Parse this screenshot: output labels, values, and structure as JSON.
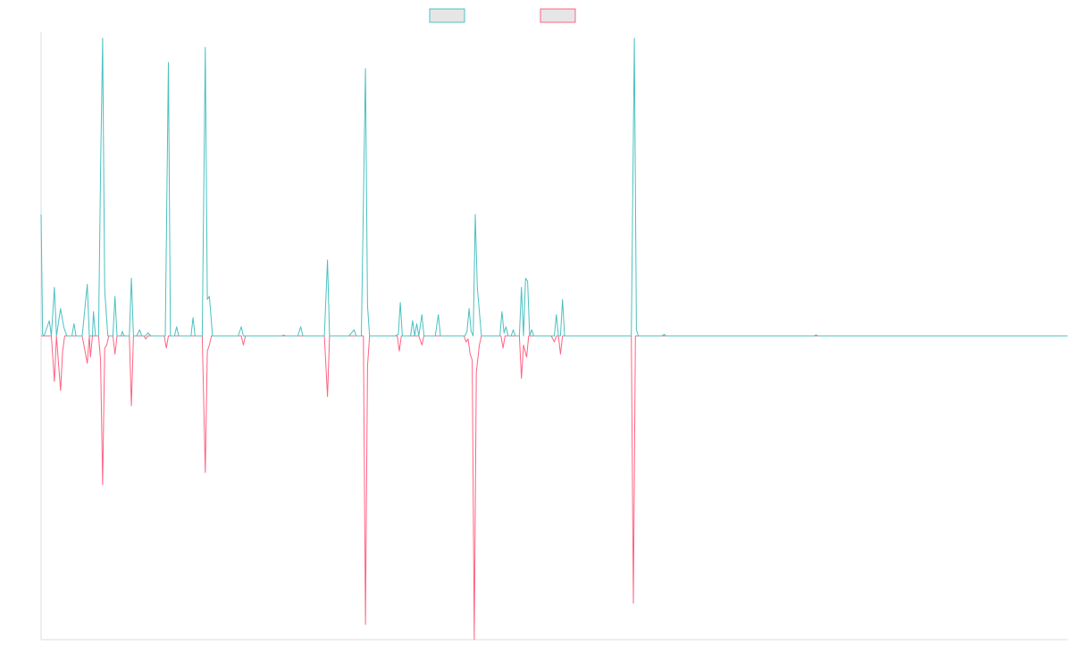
{
  "chart_data": {
    "type": "line",
    "legend": {
      "position": "top-center",
      "labels": [
        "",
        ""
      ]
    },
    "colors": {
      "series_a": "#4bc0c0",
      "series_b": "#ff6384",
      "legend_fill": "#e6e6e6",
      "axis": "#dddddd"
    },
    "grid": false,
    "axis_labels_shown": false,
    "x": [
      0,
      1000
    ],
    "ylim": [
      -100,
      100
    ],
    "series": [
      {
        "key": "series_a",
        "color": "#4bc0c0",
        "points": [
          [
            0,
            40
          ],
          [
            1.5,
            0.5
          ],
          [
            3,
            0
          ],
          [
            8,
            5
          ],
          [
            10,
            0
          ],
          [
            13,
            16
          ],
          [
            15,
            0
          ],
          [
            19,
            9
          ],
          [
            22,
            3
          ],
          [
            25,
            0
          ],
          [
            30,
            0
          ],
          [
            32,
            4
          ],
          [
            34,
            0
          ],
          [
            40,
            0
          ],
          [
            45,
            17
          ],
          [
            47,
            0
          ],
          [
            50,
            0
          ],
          [
            51,
            8
          ],
          [
            53,
            0
          ],
          [
            56,
            0
          ],
          [
            58,
            55
          ],
          [
            60,
            98
          ],
          [
            62,
            15
          ],
          [
            65,
            0
          ],
          [
            70,
            0
          ],
          [
            72,
            13
          ],
          [
            74,
            0
          ],
          [
            78,
            0
          ],
          [
            79,
            1.5
          ],
          [
            81,
            0
          ],
          [
            86,
            0
          ],
          [
            88,
            19
          ],
          [
            90,
            0
          ],
          [
            93,
            0
          ],
          [
            96,
            2
          ],
          [
            98,
            0
          ],
          [
            102,
            0
          ],
          [
            104,
            1
          ],
          [
            107,
            0
          ],
          [
            110,
            0
          ],
          [
            121,
            0
          ],
          [
            124,
            90
          ],
          [
            126,
            0
          ],
          [
            130,
            0
          ],
          [
            132,
            3
          ],
          [
            134,
            0
          ],
          [
            140,
            0
          ],
          [
            146,
            0
          ],
          [
            148,
            6
          ],
          [
            150,
            0
          ],
          [
            157,
            0
          ],
          [
            160,
            95
          ],
          [
            162,
            12
          ],
          [
            164,
            13
          ],
          [
            167,
            0
          ],
          [
            170,
            0
          ],
          [
            180,
            0
          ],
          [
            192,
            0
          ],
          [
            195,
            3
          ],
          [
            197,
            0
          ],
          [
            235,
            0
          ],
          [
            236,
            0.3
          ],
          [
            238,
            0
          ],
          [
            250,
            0
          ],
          [
            253,
            3
          ],
          [
            255,
            0
          ],
          [
            276,
            0
          ],
          [
            279,
            25
          ],
          [
            281,
            0
          ],
          [
            300,
            0
          ],
          [
            305,
            2
          ],
          [
            307,
            0
          ],
          [
            312,
            0
          ],
          [
            316,
            88
          ],
          [
            318,
            10
          ],
          [
            320,
            0
          ],
          [
            345,
            0
          ],
          [
            348,
            0.5
          ],
          [
            350,
            11
          ],
          [
            352,
            0
          ],
          [
            357,
            0
          ],
          [
            360,
            0
          ],
          [
            362,
            5
          ],
          [
            364,
            0
          ],
          [
            366,
            4
          ],
          [
            368,
            0
          ],
          [
            371,
            7
          ],
          [
            373,
            0
          ],
          [
            384,
            0
          ],
          [
            387,
            7
          ],
          [
            389,
            0
          ],
          [
            413,
            0
          ],
          [
            415,
            1.5
          ],
          [
            417,
            9
          ],
          [
            419,
            1.5
          ],
          [
            421,
            0
          ],
          [
            423,
            40
          ],
          [
            425,
            16
          ],
          [
            427,
            8
          ],
          [
            429,
            0
          ],
          [
            447,
            0
          ],
          [
            449,
            8
          ],
          [
            451,
            1
          ],
          [
            453,
            3
          ],
          [
            455,
            0
          ],
          [
            458,
            0
          ],
          [
            460,
            2
          ],
          [
            462,
            0
          ],
          [
            466,
            0
          ],
          [
            468,
            16
          ],
          [
            470,
            0
          ],
          [
            472,
            19
          ],
          [
            474,
            18
          ],
          [
            476,
            0
          ],
          [
            478,
            2
          ],
          [
            480,
            0
          ],
          [
            490,
            0
          ],
          [
            500,
            0
          ],
          [
            502,
            7
          ],
          [
            504,
            0
          ],
          [
            506,
            0
          ],
          [
            508,
            12
          ],
          [
            510,
            0
          ],
          [
            530,
            0
          ],
          [
            575,
            0
          ],
          [
            578,
            98
          ],
          [
            580,
            2
          ],
          [
            582,
            0
          ],
          [
            605,
            0
          ],
          [
            607,
            0.5
          ],
          [
            609,
            0
          ],
          [
            753,
            0
          ],
          [
            755,
            0.3
          ],
          [
            757,
            0
          ],
          [
            1000,
            0
          ]
        ]
      },
      {
        "key": "series_b",
        "color": "#ff6384",
        "points": [
          [
            0,
            0
          ],
          [
            10,
            0
          ],
          [
            13,
            -15
          ],
          [
            15,
            0
          ],
          [
            19,
            -18
          ],
          [
            21,
            -5
          ],
          [
            23,
            0
          ],
          [
            40,
            0
          ],
          [
            45,
            -9
          ],
          [
            47,
            0
          ],
          [
            48,
            -7
          ],
          [
            50,
            0
          ],
          [
            56,
            0
          ],
          [
            58,
            -8
          ],
          [
            60,
            -49
          ],
          [
            62,
            -4
          ],
          [
            64,
            -3
          ],
          [
            66,
            0
          ],
          [
            70,
            0
          ],
          [
            72,
            -6
          ],
          [
            74,
            0
          ],
          [
            86,
            0
          ],
          [
            88,
            -23
          ],
          [
            90,
            0
          ],
          [
            100,
            0
          ],
          [
            102,
            -1
          ],
          [
            104,
            0
          ],
          [
            120,
            0
          ],
          [
            122,
            -4
          ],
          [
            124,
            0
          ],
          [
            157,
            0
          ],
          [
            160,
            -45
          ],
          [
            162,
            -5
          ],
          [
            164,
            -3
          ],
          [
            166,
            0
          ],
          [
            195,
            0
          ],
          [
            197,
            -3
          ],
          [
            199,
            0
          ],
          [
            276,
            0
          ],
          [
            279,
            -20
          ],
          [
            281,
            0
          ],
          [
            314,
            0
          ],
          [
            316,
            -95
          ],
          [
            318,
            -10
          ],
          [
            320,
            0
          ],
          [
            347,
            0
          ],
          [
            349,
            -5
          ],
          [
            351,
            0
          ],
          [
            368,
            0
          ],
          [
            371,
            -3
          ],
          [
            373,
            0
          ],
          [
            412,
            0
          ],
          [
            414,
            -2
          ],
          [
            416,
            -1
          ],
          [
            418,
            -6
          ],
          [
            420,
            -8
          ],
          [
            422,
            -100
          ],
          [
            424,
            -12
          ],
          [
            427,
            -3
          ],
          [
            429,
            0
          ],
          [
            448,
            0
          ],
          [
            450,
            -4
          ],
          [
            452,
            0
          ],
          [
            466,
            0
          ],
          [
            468,
            -14
          ],
          [
            470,
            -3
          ],
          [
            473,
            -7
          ],
          [
            475,
            0
          ],
          [
            497,
            0
          ],
          [
            500,
            -2
          ],
          [
            502,
            0
          ],
          [
            504,
            0
          ],
          [
            506,
            -6
          ],
          [
            508,
            0
          ],
          [
            575,
            0
          ],
          [
            577,
            -88
          ],
          [
            579,
            0
          ],
          [
            1000,
            0
          ]
        ]
      }
    ]
  }
}
